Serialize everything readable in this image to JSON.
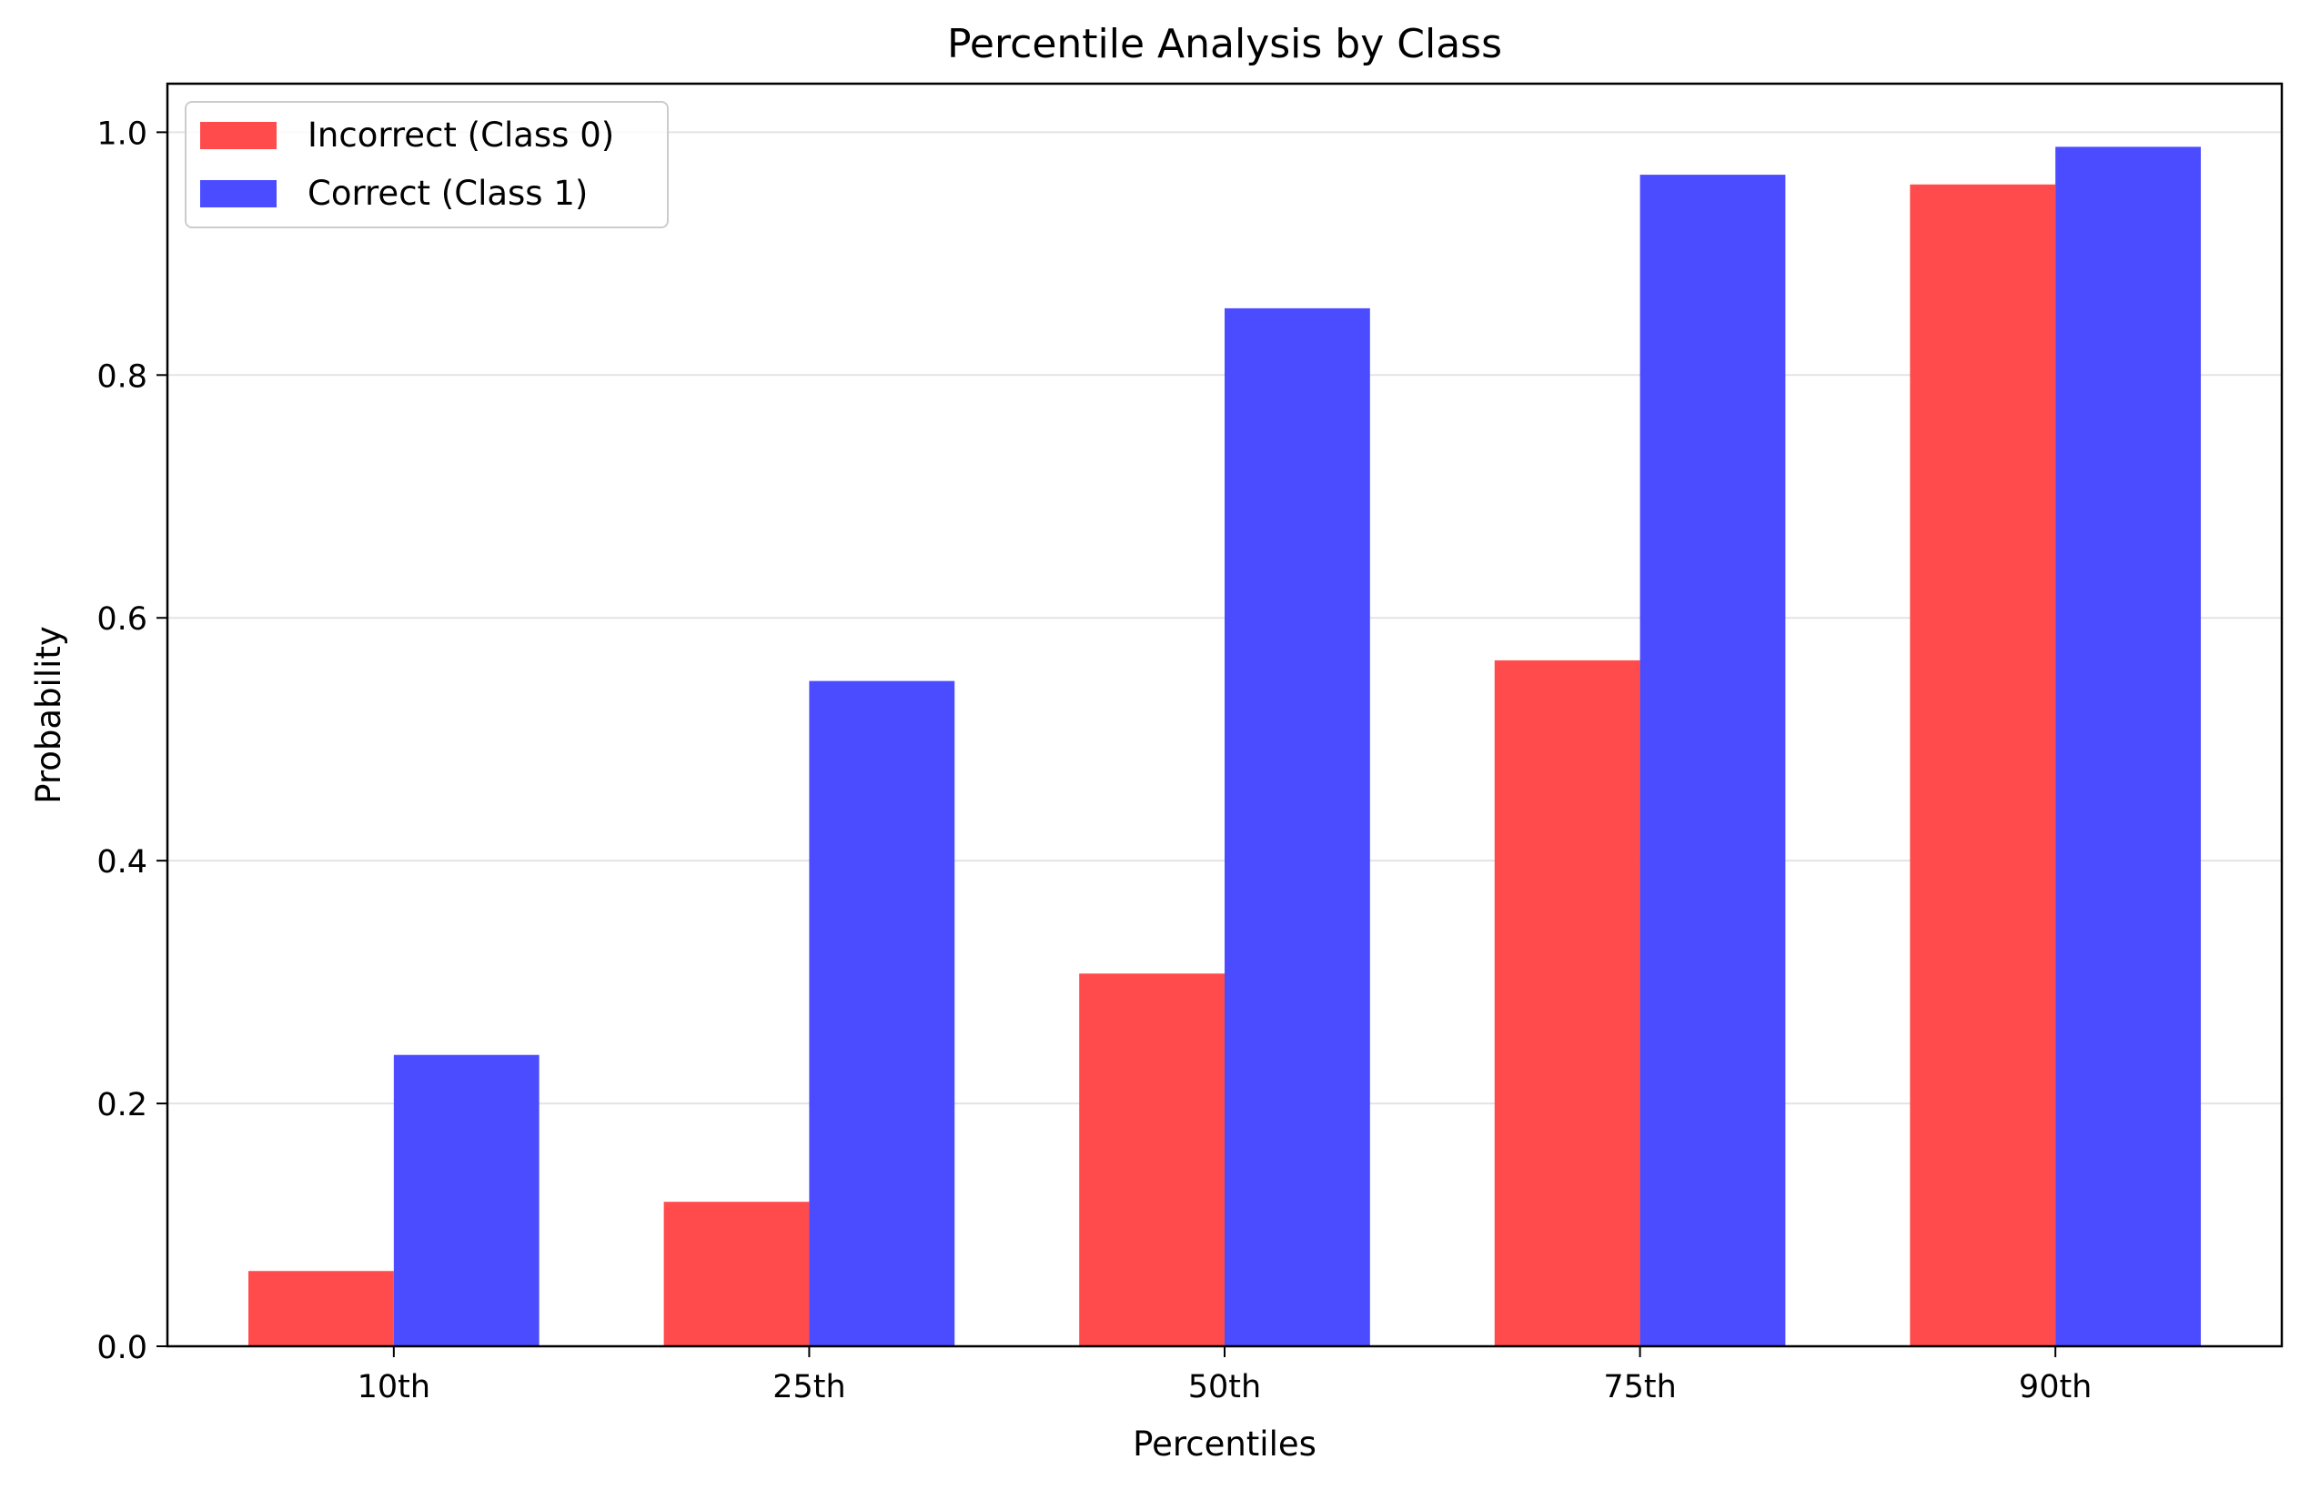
{
  "chart_data": {
    "type": "bar",
    "title": "Percentile Analysis by Class",
    "xlabel": "Percentiles",
    "ylabel": "Probability",
    "categories": [
      "10th",
      "25th",
      "50th",
      "75th",
      "90th"
    ],
    "ylim": [
      0,
      1.04
    ],
    "yticks": [
      0.0,
      0.2,
      0.4,
      0.6,
      0.8,
      1.0
    ],
    "ytick_labels": [
      "0.0",
      "0.2",
      "0.4",
      "0.6",
      "0.8",
      "1.0"
    ],
    "grid": "y",
    "legend_position": "top-left",
    "series": [
      {
        "name": "Incorrect (Class 0)",
        "color": "#ff4b4b",
        "values": [
          0.062,
          0.119,
          0.307,
          0.565,
          0.957
        ]
      },
      {
        "name": "Correct (Class 1)",
        "color": "#4b4bff",
        "values": [
          0.24,
          0.548,
          0.855,
          0.965,
          0.988
        ]
      }
    ]
  }
}
